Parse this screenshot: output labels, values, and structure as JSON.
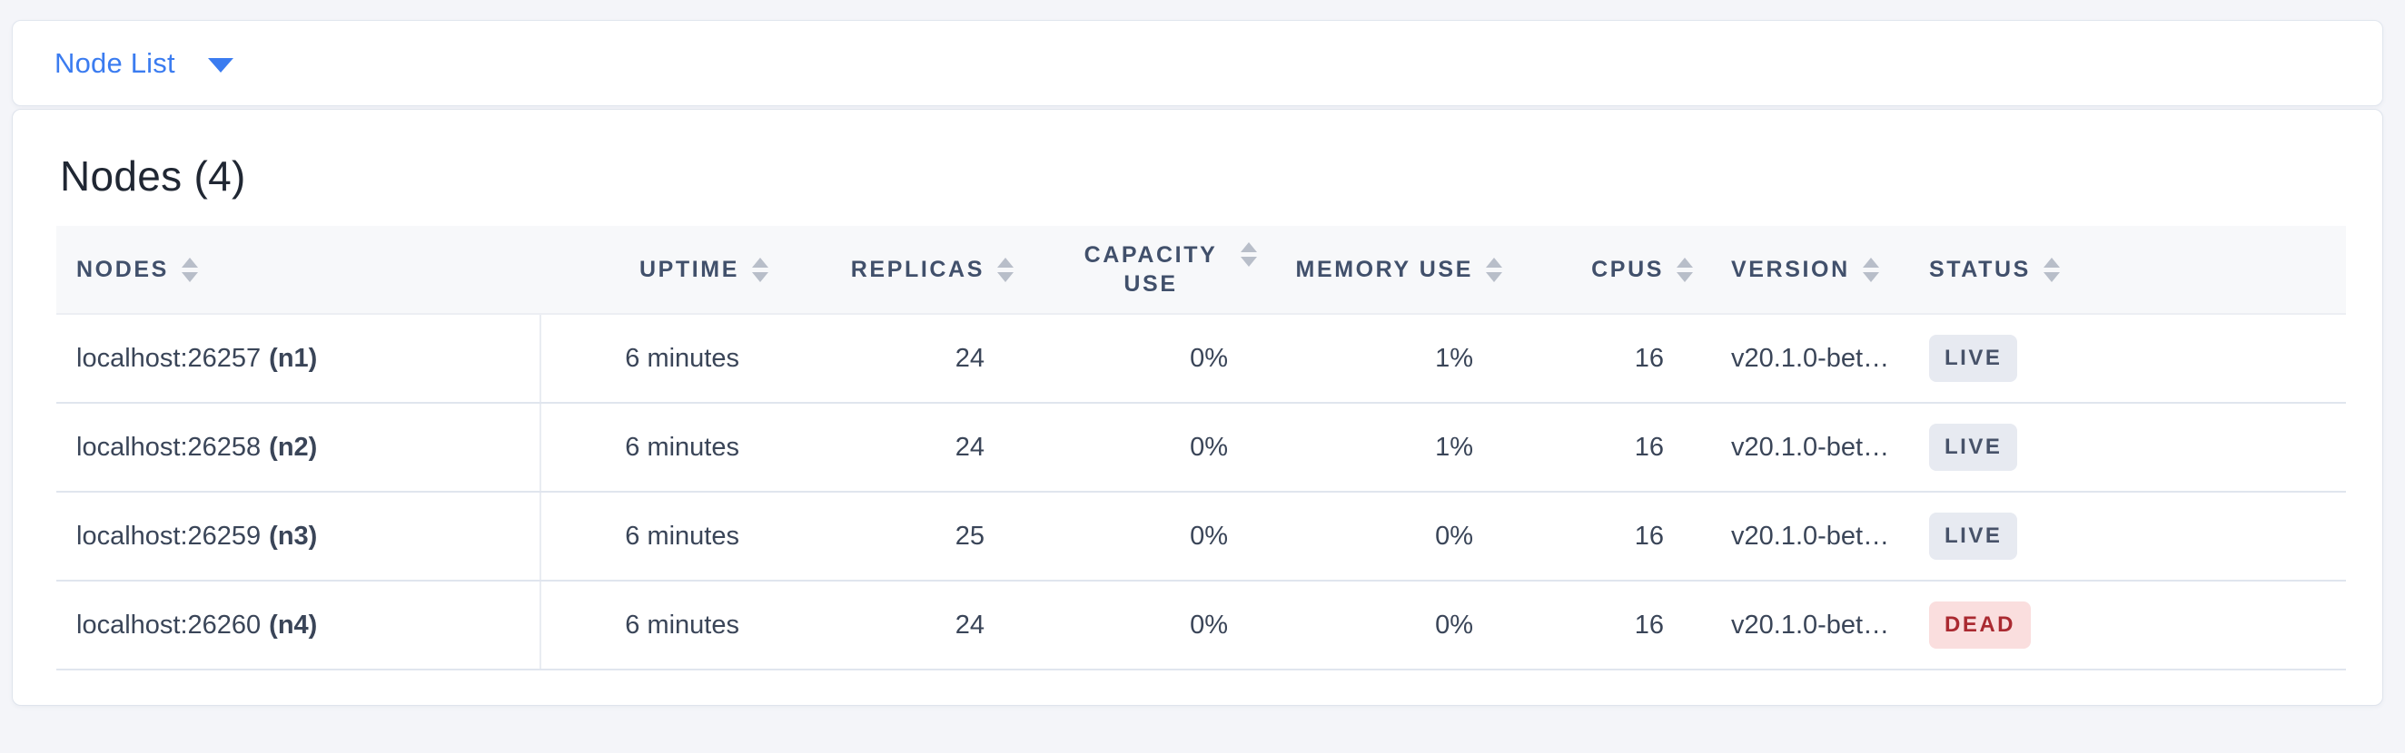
{
  "topbar": {
    "title": "Node List",
    "caret_icon": "triangle-down",
    "accent_color": "#3b7cf0"
  },
  "section": {
    "title": "Nodes (4)"
  },
  "table": {
    "columns": [
      {
        "key": "nodes",
        "label": "NODES",
        "align": "left",
        "sortable": true
      },
      {
        "key": "uptime",
        "label": "UPTIME",
        "align": "right",
        "sortable": true
      },
      {
        "key": "replicas",
        "label": "REPLICAS",
        "align": "right",
        "sortable": true
      },
      {
        "key": "capacity_use",
        "label": "CAPACITY USE",
        "align": "right",
        "sortable": true,
        "wrap": true
      },
      {
        "key": "memory_use",
        "label": "MEMORY USE",
        "align": "right",
        "sortable": true
      },
      {
        "key": "cpus",
        "label": "CPUS",
        "align": "right",
        "sortable": true
      },
      {
        "key": "version",
        "label": "VERSION",
        "align": "left",
        "sortable": true
      },
      {
        "key": "status",
        "label": "STATUS",
        "align": "left",
        "sortable": true
      }
    ],
    "rows": [
      {
        "address": "localhost:26257",
        "node_id": "(n1)",
        "uptime": "6 minutes",
        "replicas": "24",
        "capacity_use": "0%",
        "memory_use": "1%",
        "cpus": "16",
        "version": "v20.1.0-bet…",
        "status": "LIVE"
      },
      {
        "address": "localhost:26258",
        "node_id": "(n2)",
        "uptime": "6 minutes",
        "replicas": "24",
        "capacity_use": "0%",
        "memory_use": "1%",
        "cpus": "16",
        "version": "v20.1.0-bet…",
        "status": "LIVE"
      },
      {
        "address": "localhost:26259",
        "node_id": "(n3)",
        "uptime": "6 minutes",
        "replicas": "25",
        "capacity_use": "0%",
        "memory_use": "0%",
        "cpus": "16",
        "version": "v20.1.0-bet…",
        "status": "LIVE"
      },
      {
        "address": "localhost:26260",
        "node_id": "(n4)",
        "uptime": "6 minutes",
        "replicas": "24",
        "capacity_use": "0%",
        "memory_use": "0%",
        "cpus": "16",
        "version": "v20.1.0-bet…",
        "status": "DEAD"
      }
    ],
    "status_styles": {
      "LIVE": {
        "bg": "#e7eaf1",
        "text": "#475269"
      },
      "DEAD": {
        "bg": "#fadede",
        "text": "#aa2a31"
      }
    },
    "sort_icon": "sort-arrows-icon"
  }
}
